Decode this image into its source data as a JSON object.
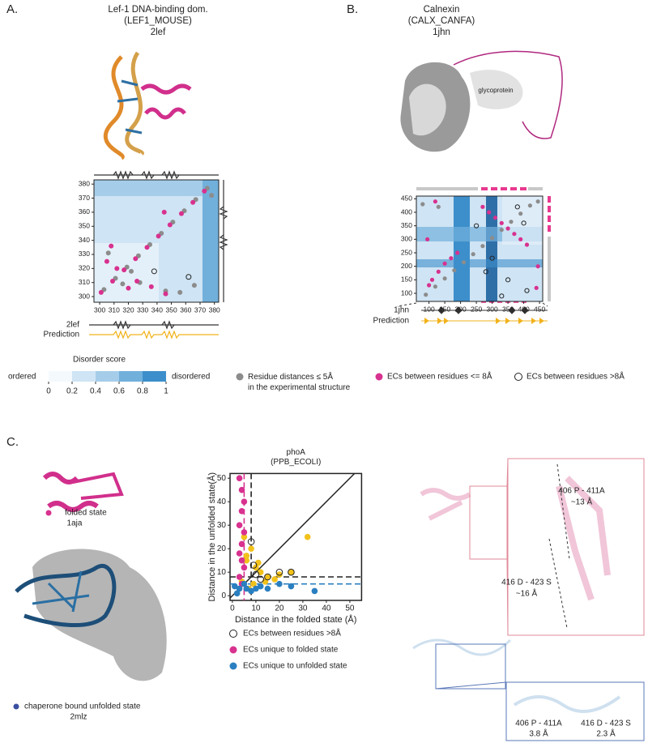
{
  "panels": [
    {
      "label": "A.",
      "title": [
        "Lef-1 DNA-binding dom.",
        "(LEF1_MOUSE)",
        "2lef"
      ],
      "tracks": [
        "2lef",
        "Prediction"
      ]
    },
    {
      "label": "B.",
      "title": [
        "Calnexin",
        "(CALX_CANFA)",
        "1jhn"
      ],
      "tracks": [
        "1jhn",
        "Prediction"
      ],
      "image_label": "glycoprotein"
    },
    {
      "label": "C.",
      "folded": [
        "folded state",
        "1aja"
      ],
      "unfolded": [
        "chaperone bound unfolded state",
        "2mlz"
      ],
      "insets": [
        [
          "406 P - 411A",
          "~13 Å"
        ],
        [
          "416 D - 423 S",
          "~16 Å"
        ],
        [
          "406 P - 411A",
          "3.8 Å"
        ],
        [
          "416 D - 423 S",
          "2.3 Å"
        ]
      ]
    }
  ],
  "colorbar": {
    "title": "Disorder score",
    "low": "ordered",
    "high": "disordered",
    "ticks": [
      0,
      0.2,
      0.4,
      0.6,
      0.8,
      1
    ],
    "colors": [
      "#f4f9fd",
      "#cfe4f4",
      "#a5cde9",
      "#72b0dc",
      "#3d8fcb"
    ]
  },
  "chart_data": [
    {
      "type": "scatter",
      "xlim": [
        296,
        383
      ],
      "ylim": [
        296,
        383
      ],
      "xticks": [
        300,
        310,
        320,
        330,
        340,
        350,
        360,
        370,
        380
      ],
      "yticks": [
        300,
        310,
        320,
        330,
        340,
        350,
        360,
        370,
        380
      ],
      "series": [
        {
          "name": "Residue distances ≤ 5Å in the experimental structure",
          "color": "#8c8c8c",
          "marker": "filled",
          "x": [
            303,
            311,
            319,
            327,
            335,
            343,
            351,
            359,
            367,
            375,
            306,
            316,
            346,
            356,
            366,
            378,
            328,
            322
          ],
          "y": [
            305,
            313,
            321,
            329,
            337,
            345,
            353,
            361,
            369,
            377,
            331,
            309,
            304,
            303,
            308,
            372,
            310,
            318
          ]
        },
        {
          "name": "ECs between residues <= 8Å",
          "color": "#d8318f",
          "marker": "filled",
          "x": [
            301,
            309,
            317,
            325,
            333,
            341,
            349,
            357,
            365,
            373,
            305,
            308,
            312,
            326,
            336,
            346,
            320,
            345
          ],
          "y": [
            303,
            311,
            319,
            327,
            335,
            343,
            351,
            359,
            367,
            375,
            325,
            336,
            320,
            311,
            307,
            302,
            306,
            360
          ]
        },
        {
          "name": "ECs between residues >8Å",
          "color": "#222222",
          "marker": "open",
          "x": [
            338,
            362
          ],
          "y": [
            318,
            314
          ]
        }
      ]
    },
    {
      "type": "scatter",
      "xlim": [
        60,
        460
      ],
      "ylim": [
        70,
        460
      ],
      "xticks": [
        100,
        150,
        200,
        250,
        300,
        350,
        400,
        450
      ],
      "yticks": [
        100,
        150,
        200,
        250,
        300,
        350,
        400,
        450
      ],
      "series": [
        {
          "color": "#8c8c8c",
          "marker": "filled",
          "x": [
            90,
            120,
            150,
            180,
            210,
            240,
            270,
            300,
            330,
            360,
            390,
            420,
            445,
            80,
            130
          ],
          "y": [
            95,
            125,
            155,
            185,
            215,
            245,
            275,
            305,
            335,
            365,
            395,
            425,
            440,
            430,
            420
          ]
        },
        {
          "color": "#d8318f",
          "marker": "filled",
          "x": [
            270,
            290,
            310,
            330,
            350,
            370,
            390,
            410,
            100,
            110,
            130,
            150,
            170,
            190,
            95,
            120,
            440,
            445
          ],
          "y": [
            420,
            400,
            380,
            360,
            340,
            320,
            300,
            280,
            130,
            150,
            180,
            210,
            230,
            250,
            300,
            440,
            120,
            200
          ]
        },
        {
          "color": "#222222",
          "marker": "open",
          "x": [
            250,
            300,
            350,
            400,
            410,
            380,
            330,
            280
          ],
          "y": [
            350,
            230,
            150,
            360,
            110,
            420,
            90,
            180
          ]
        }
      ]
    },
    {
      "type": "scatter",
      "title": [
        "phoA",
        "(PPB_ECOLI)"
      ],
      "xlabel": "Distance in the folded state (Å)",
      "ylabel": "Distance in the unfolded state(Å)",
      "xlim": [
        -1,
        55
      ],
      "ylim": [
        -2,
        52
      ],
      "xticks": [
        0,
        10,
        20,
        30,
        40,
        50
      ],
      "yticks": [
        0,
        10,
        20,
        30,
        40,
        50
      ],
      "diagonal": true,
      "reference_lines": [
        {
          "axis": "x",
          "value": 8,
          "color": "#222222"
        },
        {
          "axis": "y",
          "value": 8,
          "color": "#222222"
        },
        {
          "axis": "x",
          "value": 5,
          "color": "#d8318f"
        },
        {
          "axis": "y",
          "value": 5,
          "color": "#2a7fc0"
        }
      ],
      "series": [
        {
          "color": "#f2c21b",
          "marker": "filled",
          "x": [
            5,
            8,
            6,
            10,
            12,
            15,
            20,
            25,
            32,
            7,
            9,
            4,
            6,
            11,
            14,
            18
          ],
          "y": [
            25,
            20,
            15,
            12,
            10,
            8,
            9,
            10,
            25,
            3,
            5,
            6,
            17,
            14,
            6,
            7
          ]
        },
        {
          "name": "ECs unique to folded state",
          "color": "#d8318f",
          "marker": "filled",
          "x": [
            3,
            4,
            5,
            4,
            3,
            5,
            4,
            3,
            4,
            5,
            3,
            4
          ],
          "y": [
            50,
            45,
            40,
            36,
            30,
            27,
            22,
            18,
            15,
            12,
            8,
            5
          ]
        },
        {
          "name": "ECs unique to unfolded state",
          "color": "#2a7fc0",
          "marker": "filled",
          "x": [
            1,
            3,
            5,
            8,
            12,
            15,
            20,
            25,
            35,
            2,
            6,
            10
          ],
          "y": [
            4,
            3,
            5,
            2,
            4,
            3,
            5,
            4,
            2,
            1,
            3,
            3
          ]
        },
        {
          "name": "ECs between residues >8Å",
          "color": "#222222",
          "marker": "open",
          "x": [
            8,
            10,
            15,
            20,
            25,
            9,
            12
          ],
          "y": [
            23,
            9,
            8,
            10,
            10,
            13,
            7
          ]
        }
      ]
    }
  ]
}
